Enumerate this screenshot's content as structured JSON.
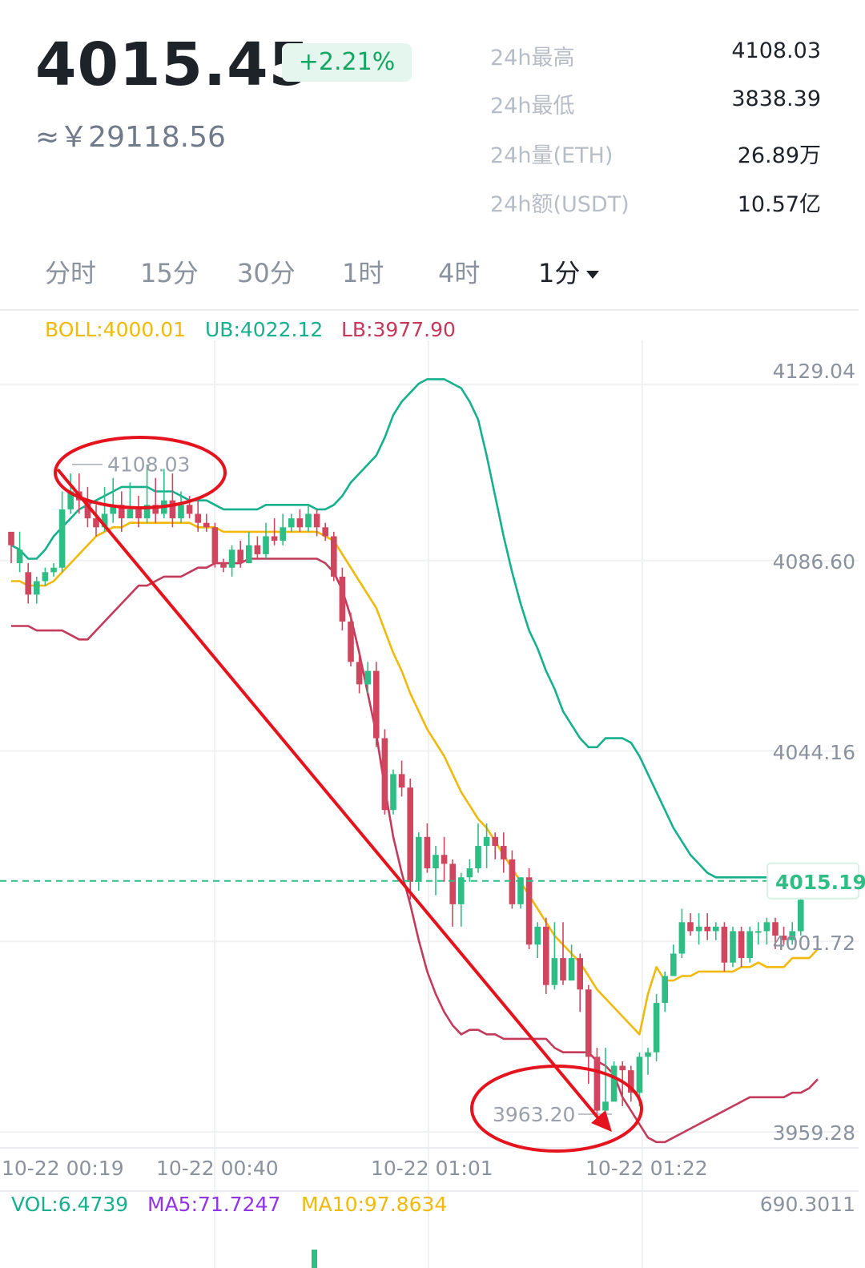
{
  "header": {
    "price": "4015.45",
    "change": "+2.21%",
    "cny": "≈￥29118.56"
  },
  "stats": [
    {
      "label": "24h最高",
      "value": "4108.03"
    },
    {
      "label": "24h最低",
      "value": "3838.39"
    },
    {
      "label": "24h量(ETH)",
      "value": "26.89万"
    },
    {
      "label": "24h额(USDT)",
      "value": "10.57亿"
    }
  ],
  "tabs": [
    "分时",
    "15分",
    "30分",
    "1时",
    "4时",
    "1分"
  ],
  "indicator": {
    "boll": "BOLL:4000.01",
    "ub": "UB:4022.12",
    "lb": "LB:3977.90"
  },
  "volume_legend": {
    "vol": "VOL:6.4739",
    "ma5": "MA5:71.7247",
    "ma10": "MA10:97.8634",
    "max": "690.3011"
  },
  "colors": {
    "up": "#2ebd85",
    "down": "#d0465f",
    "boll": "#f0b90b",
    "ub": "#16b08d",
    "lb": "#c43a5b",
    "annotation": "#e5131d",
    "ma5": "#9334e6"
  },
  "chart_data": {
    "type": "candlestick",
    "y_axis_labels": [
      "4129.04",
      "4086.60",
      "4044.16",
      "4015.19",
      "4001.72",
      "3959.28"
    ],
    "ylim": [
      3959.28,
      4129.04
    ],
    "x_axis_labels": [
      "10-22 00:19",
      "10-22 00:40",
      "10-22 01:01",
      "10-22 01:22"
    ],
    "current_price": "4015.19",
    "high_marker": "4108.03",
    "low_marker": "3963.20",
    "candles": [
      [
        4093,
        4090,
        4092,
        4086
      ],
      [
        4086,
        4089,
        4093,
        4084
      ],
      [
        4084,
        4079,
        4086,
        4077
      ],
      [
        4079,
        4082,
        4083,
        4077
      ],
      [
        4082,
        4084,
        4085,
        4081
      ],
      [
        4084,
        4085,
        4086,
        4083
      ],
      [
        4085,
        4098,
        4102,
        4084
      ],
      [
        4098,
        4102,
        4106,
        4097
      ],
      [
        4102,
        4100,
        4106,
        4097
      ],
      [
        4100,
        4096,
        4103,
        4094
      ],
      [
        4096,
        4094,
        4099,
        4092
      ],
      [
        4094,
        4097,
        4103,
        4093
      ],
      [
        4097,
        4099,
        4105,
        4095
      ],
      [
        4099,
        4096,
        4102,
        4093
      ],
      [
        4096,
        4098,
        4104,
        4096
      ],
      [
        4098,
        4096,
        4101,
        4094
      ],
      [
        4096,
        4099,
        4108,
        4095
      ],
      [
        4099,
        4097,
        4105,
        4095
      ],
      [
        4097,
        4100,
        4107,
        4096
      ],
      [
        4100,
        4096,
        4106,
        4094
      ],
      [
        4096,
        4099,
        4102,
        4095
      ],
      [
        4099,
        4097,
        4101,
        4096
      ],
      [
        4097,
        4095,
        4100,
        4093
      ],
      [
        4095,
        4094,
        4097,
        4093
      ],
      [
        4094,
        4086,
        4095,
        4085
      ],
      [
        4086,
        4085,
        4087,
        4084
      ],
      [
        4085,
        4089,
        4090,
        4083
      ],
      [
        4089,
        4086,
        4091,
        4085
      ],
      [
        4086,
        4090,
        4093,
        4086
      ],
      [
        4090,
        4088,
        4092,
        4087
      ],
      [
        4088,
        4092,
        4095,
        4087
      ],
      [
        4092,
        4091,
        4096,
        4090
      ],
      [
        4091,
        4094,
        4097,
        4090
      ],
      [
        4094,
        4096,
        4097,
        4093
      ],
      [
        4096,
        4094,
        4098,
        4093
      ],
      [
        4094,
        4097,
        4099,
        4093
      ],
      [
        4097,
        4094,
        4098,
        4092
      ],
      [
        4094,
        4092,
        4095,
        4091
      ],
      [
        4092,
        4083,
        4093,
        4082
      ],
      [
        4083,
        4073,
        4085,
        4071
      ],
      [
        4073,
        4064,
        4075,
        4063
      ],
      [
        4064,
        4059,
        4066,
        4057
      ],
      [
        4059,
        4062,
        4064,
        4057
      ],
      [
        4062,
        4047,
        4064,
        4045
      ],
      [
        4047,
        4031,
        4049,
        4030
      ],
      [
        4031,
        4039,
        4040,
        4030
      ],
      [
        4039,
        4036,
        4042,
        4034
      ],
      [
        4036,
        4015,
        4038,
        4011
      ],
      [
        4015,
        4025,
        4026,
        4013
      ],
      [
        4025,
        4018,
        4028,
        4017
      ],
      [
        4018,
        4021,
        4023,
        4012
      ],
      [
        4021,
        4019,
        4025,
        4015
      ],
      [
        4019,
        4010,
        4020,
        4005
      ],
      [
        4010,
        4016,
        4017,
        4005
      ],
      [
        4016,
        4018,
        4020,
        4015
      ],
      [
        4018,
        4023,
        4028,
        4017
      ],
      [
        4023,
        4025,
        4028,
        4018
      ],
      [
        4025,
        4023,
        4026,
        4020
      ],
      [
        4023,
        4020,
        4026,
        4017
      ],
      [
        4020,
        4010,
        4022,
        4009
      ],
      [
        4010,
        4016,
        4016,
        4009
      ],
      [
        4016,
        4001,
        4018,
        4000
      ],
      [
        4001,
        4005,
        4006,
        3998
      ],
      [
        4005,
        3992,
        4007,
        3990
      ],
      [
        3992,
        3998,
        4006,
        3991
      ],
      [
        3998,
        3993,
        4006,
        3992
      ],
      [
        3993,
        3998,
        4001,
        3993
      ],
      [
        3998,
        3991,
        3999,
        3986
      ],
      [
        3991,
        3976,
        3992,
        3970
      ],
      [
        3976,
        3964,
        3978,
        3963
      ],
      [
        3964,
        3966,
        3978,
        3964
      ],
      [
        3966,
        3974,
        3975,
        3970
      ],
      [
        3974,
        3973,
        3975,
        3965
      ],
      [
        3973,
        3968,
        3974,
        3966
      ],
      [
        3968,
        3976,
        3977,
        3965
      ],
      [
        3976,
        3977,
        3978,
        3972
      ],
      [
        3977,
        3988,
        3990,
        3975
      ],
      [
        3988,
        3994,
        3995,
        3986
      ],
      [
        3994,
        3999,
        4001,
        3996
      ],
      [
        3999,
        4006,
        4009,
        3998
      ],
      [
        4006,
        4004,
        4008,
        4003
      ],
      [
        4004,
        4005,
        4008,
        4001
      ],
      [
        4005,
        4004,
        4008,
        4002
      ],
      [
        4004,
        4005,
        4006,
        4002
      ],
      [
        4005,
        3997,
        4006,
        3995
      ],
      [
        3997,
        4004,
        4005,
        3996
      ],
      [
        4004,
        3998,
        4005,
        3996
      ],
      [
        3998,
        4004,
        4005,
        3997
      ],
      [
        4004,
        4004,
        4006,
        4001
      ],
      [
        4004,
        4006,
        4007,
        4001
      ],
      [
        4006,
        4003,
        4007,
        4000
      ],
      [
        4003,
        4002,
        4005,
        4001
      ],
      [
        4002,
        4004,
        4006,
        4001
      ],
      [
        4004,
        4011,
        4012,
        4003
      ]
    ],
    "ub_line": [
      4090,
      4089,
      4087,
      4087,
      4089,
      4092,
      4094,
      4096,
      4098,
      4099,
      4100,
      4101,
      4102,
      4103,
      4103,
      4103,
      4103,
      4102,
      4102,
      4102,
      4101,
      4100,
      4100,
      4100,
      4099,
      4098,
      4098,
      4098,
      4098,
      4098,
      4099,
      4099,
      4099,
      4099,
      4099,
      4099,
      4098,
      4098,
      4099,
      4101,
      4104,
      4106,
      4108,
      4110,
      4114,
      4119,
      4122,
      4124,
      4126,
      4127,
      4127,
      4127,
      4126,
      4125,
      4122,
      4118,
      4110,
      4101,
      4092,
      4084,
      4077,
      4071,
      4067,
      4062,
      4058,
      4053,
      4050,
      4047,
      4045,
      4045,
      4047,
      4047,
      4047,
      4046,
      4043,
      4039,
      4035,
      4031,
      4027,
      4024,
      4021,
      4019,
      4017,
      4016,
      4016,
      4016,
      4016,
      4016,
      4016,
      4016,
      4016,
      4016,
      4016,
      4016,
      4017
    ],
    "boll_line": [
      4082,
      4082,
      4081,
      4081,
      4081,
      4082,
      4084,
      4086,
      4088,
      4090,
      4092,
      4093,
      4094,
      4094,
      4095,
      4095,
      4095,
      4095,
      4095,
      4095,
      4095,
      4095,
      4094,
      4094,
      4094,
      4093,
      4093,
      4093,
      4093,
      4093,
      4093,
      4093,
      4093,
      4093,
      4093,
      4093,
      4093,
      4092,
      4091,
      4088,
      4085,
      4082,
      4079,
      4076,
      4071,
      4066,
      4062,
      4057,
      4053,
      4049,
      4046,
      4043,
      4039,
      4035,
      4032,
      4029,
      4027,
      4024,
      4021,
      4018,
      4015,
      4012,
      4009,
      4006,
      4003,
      4001,
      3999,
      3997,
      3994,
      3991,
      3989,
      3987,
      3985,
      3983,
      3981,
      3990,
      3996,
      3993,
      3993,
      3994,
      3994,
      3995,
      3995,
      3995,
      3995,
      3995,
      3996,
      3996,
      3997,
      3996,
      3996,
      3996,
      3998,
      3998,
      3998,
      4000
    ],
    "lb_line": [
      4072,
      4072,
      4072,
      4071,
      4071,
      4071,
      4071,
      4070,
      4069,
      4069,
      4071,
      4073,
      4075,
      4077,
      4079,
      4081,
      4081,
      4082,
      4083,
      4083,
      4083,
      4084,
      4085,
      4085,
      4086,
      4086,
      4086,
      4086,
      4087,
      4087,
      4087,
      4087,
      4087,
      4087,
      4087,
      4087,
      4087,
      4086,
      4084,
      4080,
      4074,
      4066,
      4057,
      4048,
      4036,
      4025,
      4017,
      4010,
      4002,
      3995,
      3990,
      3986,
      3983,
      3981,
      3982,
      3982,
      3981,
      3981,
      3980,
      3980,
      3980,
      3980,
      3980,
      3980,
      3978,
      3977,
      3977,
      3977,
      3977,
      3975,
      3974,
      3972,
      3967,
      3964,
      3961,
      3958,
      3957,
      3957,
      3958,
      3959,
      3960,
      3961,
      3962,
      3963,
      3964,
      3965,
      3966,
      3967,
      3967,
      3967,
      3967,
      3967,
      3968,
      3968,
      3969,
      3971
    ]
  }
}
